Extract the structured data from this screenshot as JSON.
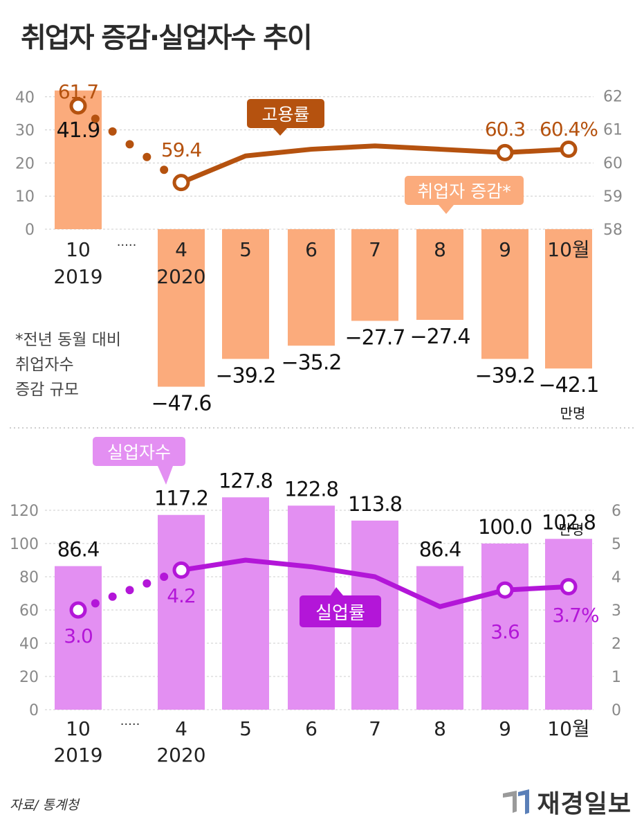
{
  "title": "취업자 증감·실업자수 추이",
  "source": "자료/ 통계청",
  "logo_text": "재경일보",
  "colors": {
    "bar_top": "#fbab7c",
    "line_top": "#b5520f",
    "bar_bottom": "#e38ff2",
    "line_bottom": "#b316d8",
    "axis_text": "#888888",
    "grid": "#cccccc"
  },
  "chart_data": [
    {
      "type": "bar+line",
      "categories": [
        "10\n2019",
        "4\n2020",
        "5",
        "6",
        "7",
        "8",
        "9",
        "10월"
      ],
      "break_marker": "·····",
      "bar_series": {
        "name": "취업자 증감*",
        "values": [
          41.9,
          -47.6,
          -39.2,
          -35.2,
          -27.7,
          -27.4,
          -39.2,
          -42.1
        ],
        "labels": [
          "41.9",
          "−47.6",
          "−39.2",
          "−35.2",
          "−27.7",
          "−27.4",
          "−39.2",
          "−42.1"
        ],
        "unit": "만명"
      },
      "line_series": {
        "name": "고용률",
        "values": [
          61.7,
          59.4,
          60.2,
          60.4,
          60.5,
          60.4,
          60.3,
          60.4
        ],
        "labels": {
          "0": "61.7",
          "1": "59.4",
          "6": "60.3",
          "7": "60.4%"
        },
        "markers": [
          0,
          1,
          6,
          7
        ]
      },
      "left_axis": {
        "ticks": [
          0,
          10,
          20,
          30,
          40
        ],
        "range": [
          0,
          40
        ]
      },
      "right_axis": {
        "ticks": [
          58,
          59,
          60,
          61,
          62
        ],
        "range": [
          58,
          62
        ]
      },
      "note": [
        "*전년 동월 대비",
        "취업자수",
        "증감 규모"
      ]
    },
    {
      "type": "bar+line",
      "categories": [
        "10\n2019",
        "4\n2020",
        "5",
        "6",
        "7",
        "8",
        "9",
        "10월"
      ],
      "break_marker": "·····",
      "bar_series": {
        "name": "실업자수",
        "values": [
          86.4,
          117.2,
          127.8,
          122.8,
          113.8,
          86.4,
          100.0,
          102.8
        ],
        "labels": [
          "86.4",
          "117.2",
          "127.8",
          "122.8",
          "113.8",
          "86.4",
          "100.0",
          "102.8"
        ],
        "unit": "만명"
      },
      "line_series": {
        "name": "실업률",
        "values": [
          3.0,
          4.2,
          4.5,
          4.3,
          4.0,
          3.1,
          3.6,
          3.7
        ],
        "labels": {
          "0": "3.0",
          "1": "4.2",
          "6": "3.6",
          "7": "3.7%"
        },
        "markers": [
          0,
          1,
          6,
          7
        ]
      },
      "left_axis": {
        "ticks": [
          0,
          20,
          40,
          60,
          80,
          100,
          120
        ],
        "range": [
          0,
          120
        ]
      },
      "right_axis": {
        "ticks": [
          0,
          1,
          2,
          3,
          4,
          5,
          6
        ],
        "range": [
          0,
          6
        ]
      }
    }
  ]
}
